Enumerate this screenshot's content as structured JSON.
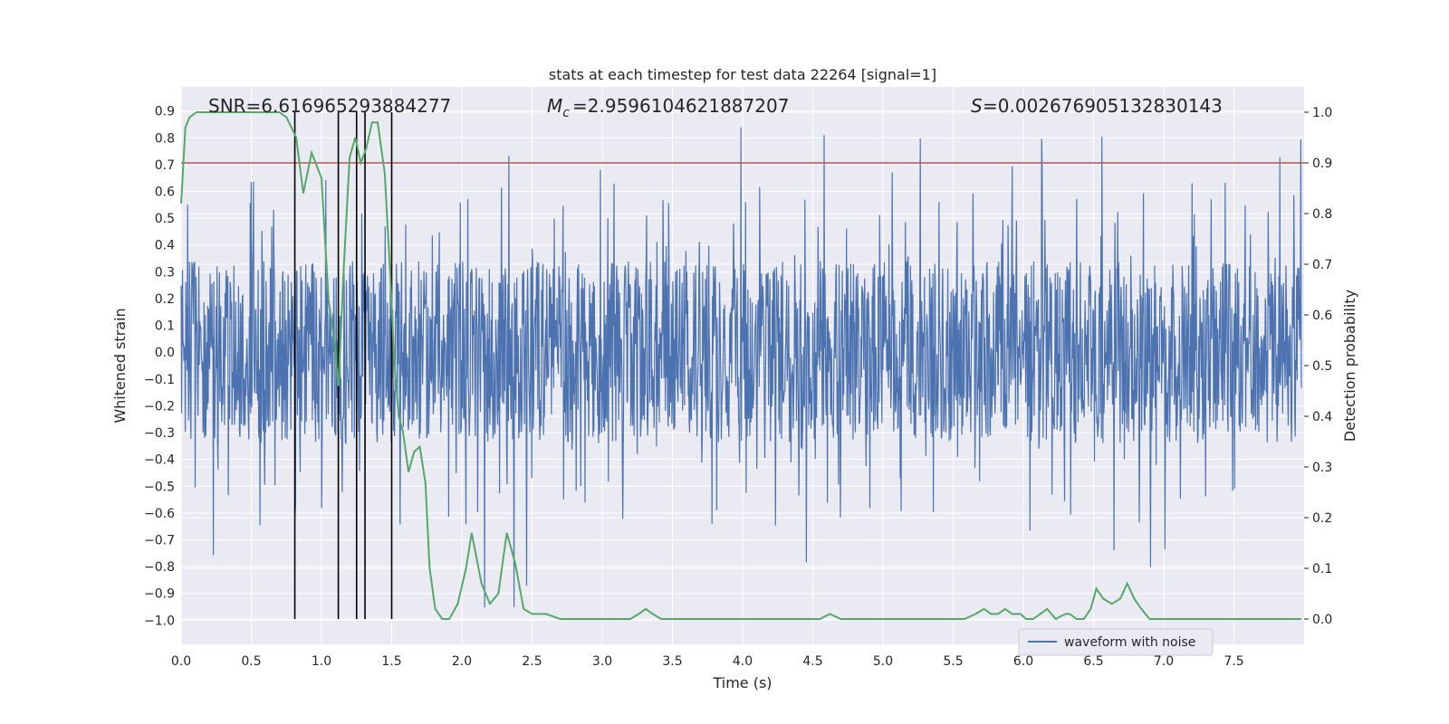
{
  "chart_data": {
    "type": "line",
    "title": "stats at each timestep for test data 22264 [signal=1]",
    "xlabel": "Time (s)",
    "ylabel_left": "Whitened strain",
    "ylabel_right": "Detection probability",
    "xlim": [
      0.0,
      8.0
    ],
    "ylim_left": [
      -1.09,
      0.99
    ],
    "ylim_right": [
      -0.05,
      1.05
    ],
    "grid": true,
    "x_ticks": [
      "0.0",
      "0.5",
      "1.0",
      "1.5",
      "2.0",
      "2.5",
      "3.0",
      "3.5",
      "4.0",
      "4.5",
      "5.0",
      "5.5",
      "6.0",
      "6.5",
      "7.0",
      "7.5"
    ],
    "y_ticks_left": [
      "0.9",
      "0.8",
      "0.7",
      "0.6",
      "0.5",
      "0.4",
      "0.3",
      "0.2",
      "0.1",
      "0.0",
      "−0.1",
      "−0.2",
      "−0.3",
      "−0.4",
      "−0.5",
      "−0.6",
      "−0.7",
      "−0.8",
      "−0.9",
      "−1.0"
    ],
    "y_ticks_right": [
      "1.0",
      "0.9",
      "0.8",
      "0.7",
      "0.6",
      "0.5",
      "0.4",
      "0.3",
      "0.2",
      "0.1",
      "0.0"
    ],
    "annotations": {
      "snr_label": "SNR=6.616965293884277",
      "mc_label": "=2.9596104621887207",
      "s_label": "=0.002676905132830143"
    },
    "legend": {
      "label": "waveform with noise",
      "location": "lower-right"
    },
    "threshold": {
      "value_right_axis": 0.9,
      "color": "#c44e52"
    },
    "detection_lines_x": [
      0.81,
      1.12,
      1.25,
      1.31,
      1.5
    ],
    "series": [
      {
        "name": "waveform with noise",
        "axis": "left",
        "color": "#4c72b0",
        "style": "dense noise, typical band ±0.3 to ±0.45, spikes to about +0.86 / −1.0",
        "seed": 22264,
        "x_range": [
          0.0,
          7.98
        ]
      },
      {
        "name": "detection probability",
        "axis": "right",
        "color": "#55a868",
        "x": [
          0.0,
          0.03,
          0.06,
          0.11,
          0.2,
          0.3,
          0.4,
          0.5,
          0.6,
          0.7,
          0.75,
          0.82,
          0.87,
          0.93,
          1.0,
          1.05,
          1.09,
          1.12,
          1.16,
          1.2,
          1.24,
          1.28,
          1.32,
          1.36,
          1.4,
          1.45,
          1.49,
          1.52,
          1.55,
          1.58,
          1.62,
          1.66,
          1.7,
          1.74,
          1.77,
          1.81,
          1.86,
          1.91,
          1.97,
          2.03,
          2.07,
          2.14,
          2.2,
          2.26,
          2.32,
          2.38,
          2.44,
          2.5,
          2.56,
          2.6,
          2.7,
          2.8,
          2.9,
          3.0,
          3.1,
          3.2,
          3.26,
          3.31,
          3.36,
          3.42,
          3.5,
          3.6,
          3.7,
          3.8,
          3.9,
          4.0,
          4.1,
          4.2,
          4.3,
          4.4,
          4.5,
          4.55,
          4.62,
          4.7,
          4.8,
          4.9,
          5.0,
          5.1,
          5.2,
          5.3,
          5.4,
          5.5,
          5.58,
          5.66,
          5.72,
          5.77,
          5.82,
          5.87,
          5.92,
          5.98,
          6.02,
          6.07,
          6.12,
          6.17,
          6.23,
          6.3,
          6.33,
          6.38,
          6.43,
          6.48,
          6.52,
          6.57,
          6.63,
          6.69,
          6.74,
          6.79,
          6.84,
          6.9,
          6.95,
          7.0,
          7.1,
          7.2,
          7.3,
          7.4,
          7.5,
          7.6,
          7.7,
          7.8,
          7.9,
          7.98
        ],
        "values": [
          0.82,
          0.97,
          0.99,
          1.0,
          1.0,
          1.0,
          1.0,
          1.0,
          1.0,
          1.0,
          0.99,
          0.95,
          0.84,
          0.92,
          0.87,
          0.63,
          0.55,
          0.46,
          0.7,
          0.91,
          0.95,
          0.9,
          0.93,
          0.98,
          0.98,
          0.88,
          0.68,
          0.5,
          0.4,
          0.37,
          0.29,
          0.33,
          0.34,
          0.27,
          0.1,
          0.02,
          0.0,
          0.0,
          0.03,
          0.1,
          0.17,
          0.07,
          0.03,
          0.05,
          0.17,
          0.11,
          0.02,
          0.01,
          0.01,
          0.01,
          0.0,
          0.0,
          0.0,
          0.0,
          0.0,
          0.0,
          0.01,
          0.02,
          0.01,
          0.0,
          0.0,
          0.0,
          0.0,
          0.0,
          0.0,
          0.0,
          0.0,
          0.0,
          0.0,
          0.0,
          0.0,
          0.0,
          0.01,
          0.0,
          0.0,
          0.0,
          0.0,
          0.0,
          0.0,
          0.0,
          0.0,
          0.0,
          0.0,
          0.01,
          0.02,
          0.01,
          0.01,
          0.02,
          0.01,
          0.01,
          0.0,
          0.0,
          0.01,
          0.02,
          0.0,
          0.01,
          0.01,
          0.0,
          0.0,
          0.02,
          0.06,
          0.04,
          0.03,
          0.04,
          0.07,
          0.04,
          0.02,
          0.0,
          0.0,
          0.0,
          0.0,
          0.0,
          0.0,
          0.0,
          0.0,
          0.0,
          0.0,
          0.0,
          0.0,
          0.0
        ]
      }
    ]
  },
  "colors": {
    "plot_background": "#eaeaf2",
    "grid": "#ffffff",
    "waveform": "#4c72b0",
    "probability": "#55a868",
    "threshold": "#c44e52",
    "detection_line": "#000000"
  }
}
